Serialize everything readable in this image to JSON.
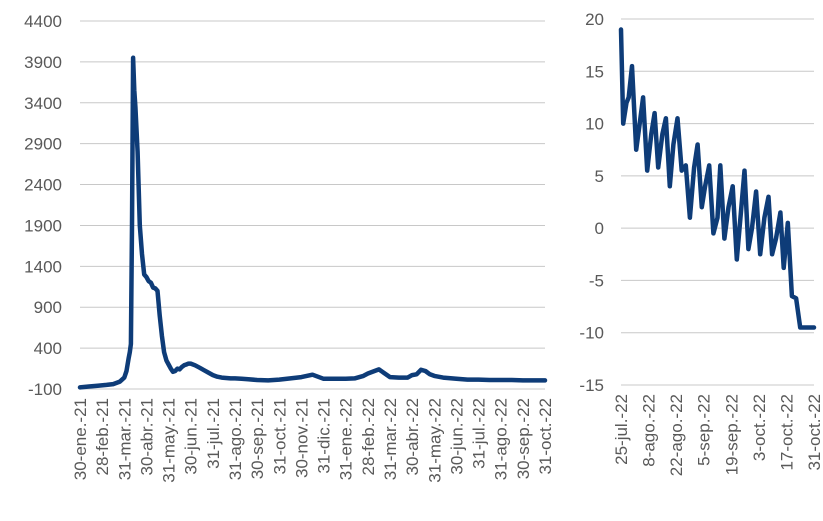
{
  "chart_data": [
    {
      "type": "line",
      "title": "",
      "xlabel": "",
      "ylabel": "",
      "ylim": [
        -100,
        4400
      ],
      "yticks": [
        4400,
        3900,
        3400,
        2900,
        2400,
        1900,
        1400,
        900,
        400,
        -100
      ],
      "xtick_labels": [
        "30-ene.-21",
        "28-feb.-21",
        "31-mar.-21",
        "30-abr.-21",
        "31-may.-21",
        "30-jun.-21",
        "31-jul.-21",
        "31-ago.-21",
        "30-sep.-21",
        "31-oct.-21",
        "30-nov.-21",
        "31-dic.-21",
        "31-ene.-22",
        "28-feb.-22",
        "31-mar.-22",
        "30-abr.-22",
        "31-may.-22",
        "30-jun.-22",
        "31-jul.-22",
        "31-ago.-22",
        "30-sep.-22",
        "31-oct.-22"
      ],
      "grid": true,
      "legend": "none",
      "series": [
        {
          "color": "#0e3c78",
          "x": [
            0,
            0.4,
            0.8,
            1.2,
            1.5,
            1.8,
            2.0,
            2.1,
            2.2,
            2.25,
            2.3,
            2.35,
            2.4,
            2.45,
            2.5,
            2.6,
            2.7,
            2.8,
            2.9,
            3.0,
            3.1,
            3.2,
            3.3,
            3.4,
            3.5,
            3.6,
            3.7,
            3.8,
            3.9,
            4.0,
            4.1,
            4.2,
            4.3,
            4.4,
            4.5,
            4.6,
            4.7,
            4.8,
            4.9,
            5.0,
            5.2,
            5.4,
            5.6,
            5.8,
            6.0,
            6.2,
            6.4,
            6.6,
            6.8,
            7.0,
            7.3,
            7.6,
            8.0,
            8.5,
            9.0,
            9.5,
            10.0,
            10.5,
            11.0,
            11.5,
            12.0,
            12.4,
            12.8,
            13.0,
            13.5,
            14.0,
            14.4,
            14.8,
            15.0,
            15.2,
            15.4,
            15.6,
            15.8,
            16.0,
            16.4,
            16.8,
            17.0,
            17.5,
            18.0,
            18.5,
            19.0,
            19.5,
            20.0,
            20.5,
            21.0
          ],
          "y": [
            -80,
            -70,
            -60,
            -50,
            -40,
            -10,
            40,
            120,
            280,
            350,
            450,
            1900,
            3950,
            3550,
            3350,
            2800,
            1900,
            1550,
            1300,
            1270,
            1220,
            1200,
            1140,
            1130,
            1100,
            800,
            550,
            350,
            250,
            200,
            150,
            110,
            120,
            150,
            140,
            170,
            190,
            200,
            210,
            210,
            190,
            160,
            130,
            100,
            70,
            50,
            40,
            35,
            30,
            30,
            25,
            20,
            10,
            5,
            15,
            30,
            45,
            75,
            25,
            25,
            25,
            30,
            60,
            90,
            140,
            45,
            40,
            40,
            70,
            80,
            135,
            120,
            80,
            60,
            40,
            30,
            25,
            15,
            15,
            10,
            10,
            10,
            5,
            5,
            5
          ]
        }
      ]
    },
    {
      "type": "line",
      "title": "",
      "xlabel": "",
      "ylabel": "",
      "ylim": [
        -15,
        20
      ],
      "yticks": [
        20,
        15,
        10,
        5,
        0,
        -5,
        -10,
        -15
      ],
      "xtick_labels": [
        "25-jul.-22",
        "8-ago.-22",
        "22-ago.-22",
        "5-sep.-22",
        "19-sep.-22",
        "3-oct.-22",
        "17-oct.-22",
        "31-oct.-22"
      ],
      "grid": true,
      "legend": "none",
      "series": [
        {
          "color": "#0e3c78",
          "x": [
            0,
            0.08,
            0.2,
            0.28,
            0.4,
            0.55,
            0.68,
            0.8,
            0.95,
            1.1,
            1.22,
            1.35,
            1.5,
            1.63,
            1.77,
            1.9,
            2.05,
            2.2,
            2.35,
            2.5,
            2.65,
            2.78,
            2.93,
            3.05,
            3.2,
            3.35,
            3.5,
            3.6,
            3.75,
            3.9,
            4.05,
            4.2,
            4.35,
            4.48,
            4.62,
            4.75,
            4.9,
            5.05,
            5.2,
            5.35,
            5.48,
            5.62,
            5.78,
            5.9,
            6.05,
            6.2,
            6.35,
            6.5,
            6.62,
            6.72,
            6.8,
            6.88,
            7.0
          ],
          "y": [
            19,
            10,
            12,
            12.5,
            15.5,
            7.5,
            10,
            12.5,
            5.5,
            9,
            11,
            5.8,
            9,
            10.5,
            4,
            8,
            10.5,
            5.5,
            6,
            1,
            5.8,
            8,
            2,
            4,
            6,
            -0.5,
            1,
            6,
            -1,
            2,
            4,
            -3,
            1.5,
            5.5,
            -2,
            0,
            3.5,
            -2.5,
            1,
            3,
            -2.5,
            -1,
            1.5,
            -3.8,
            0.5,
            -6.5,
            -6.7,
            -9.5,
            -9.5,
            -9.5,
            -9.5,
            -9.5,
            -9.5
          ]
        }
      ]
    }
  ]
}
